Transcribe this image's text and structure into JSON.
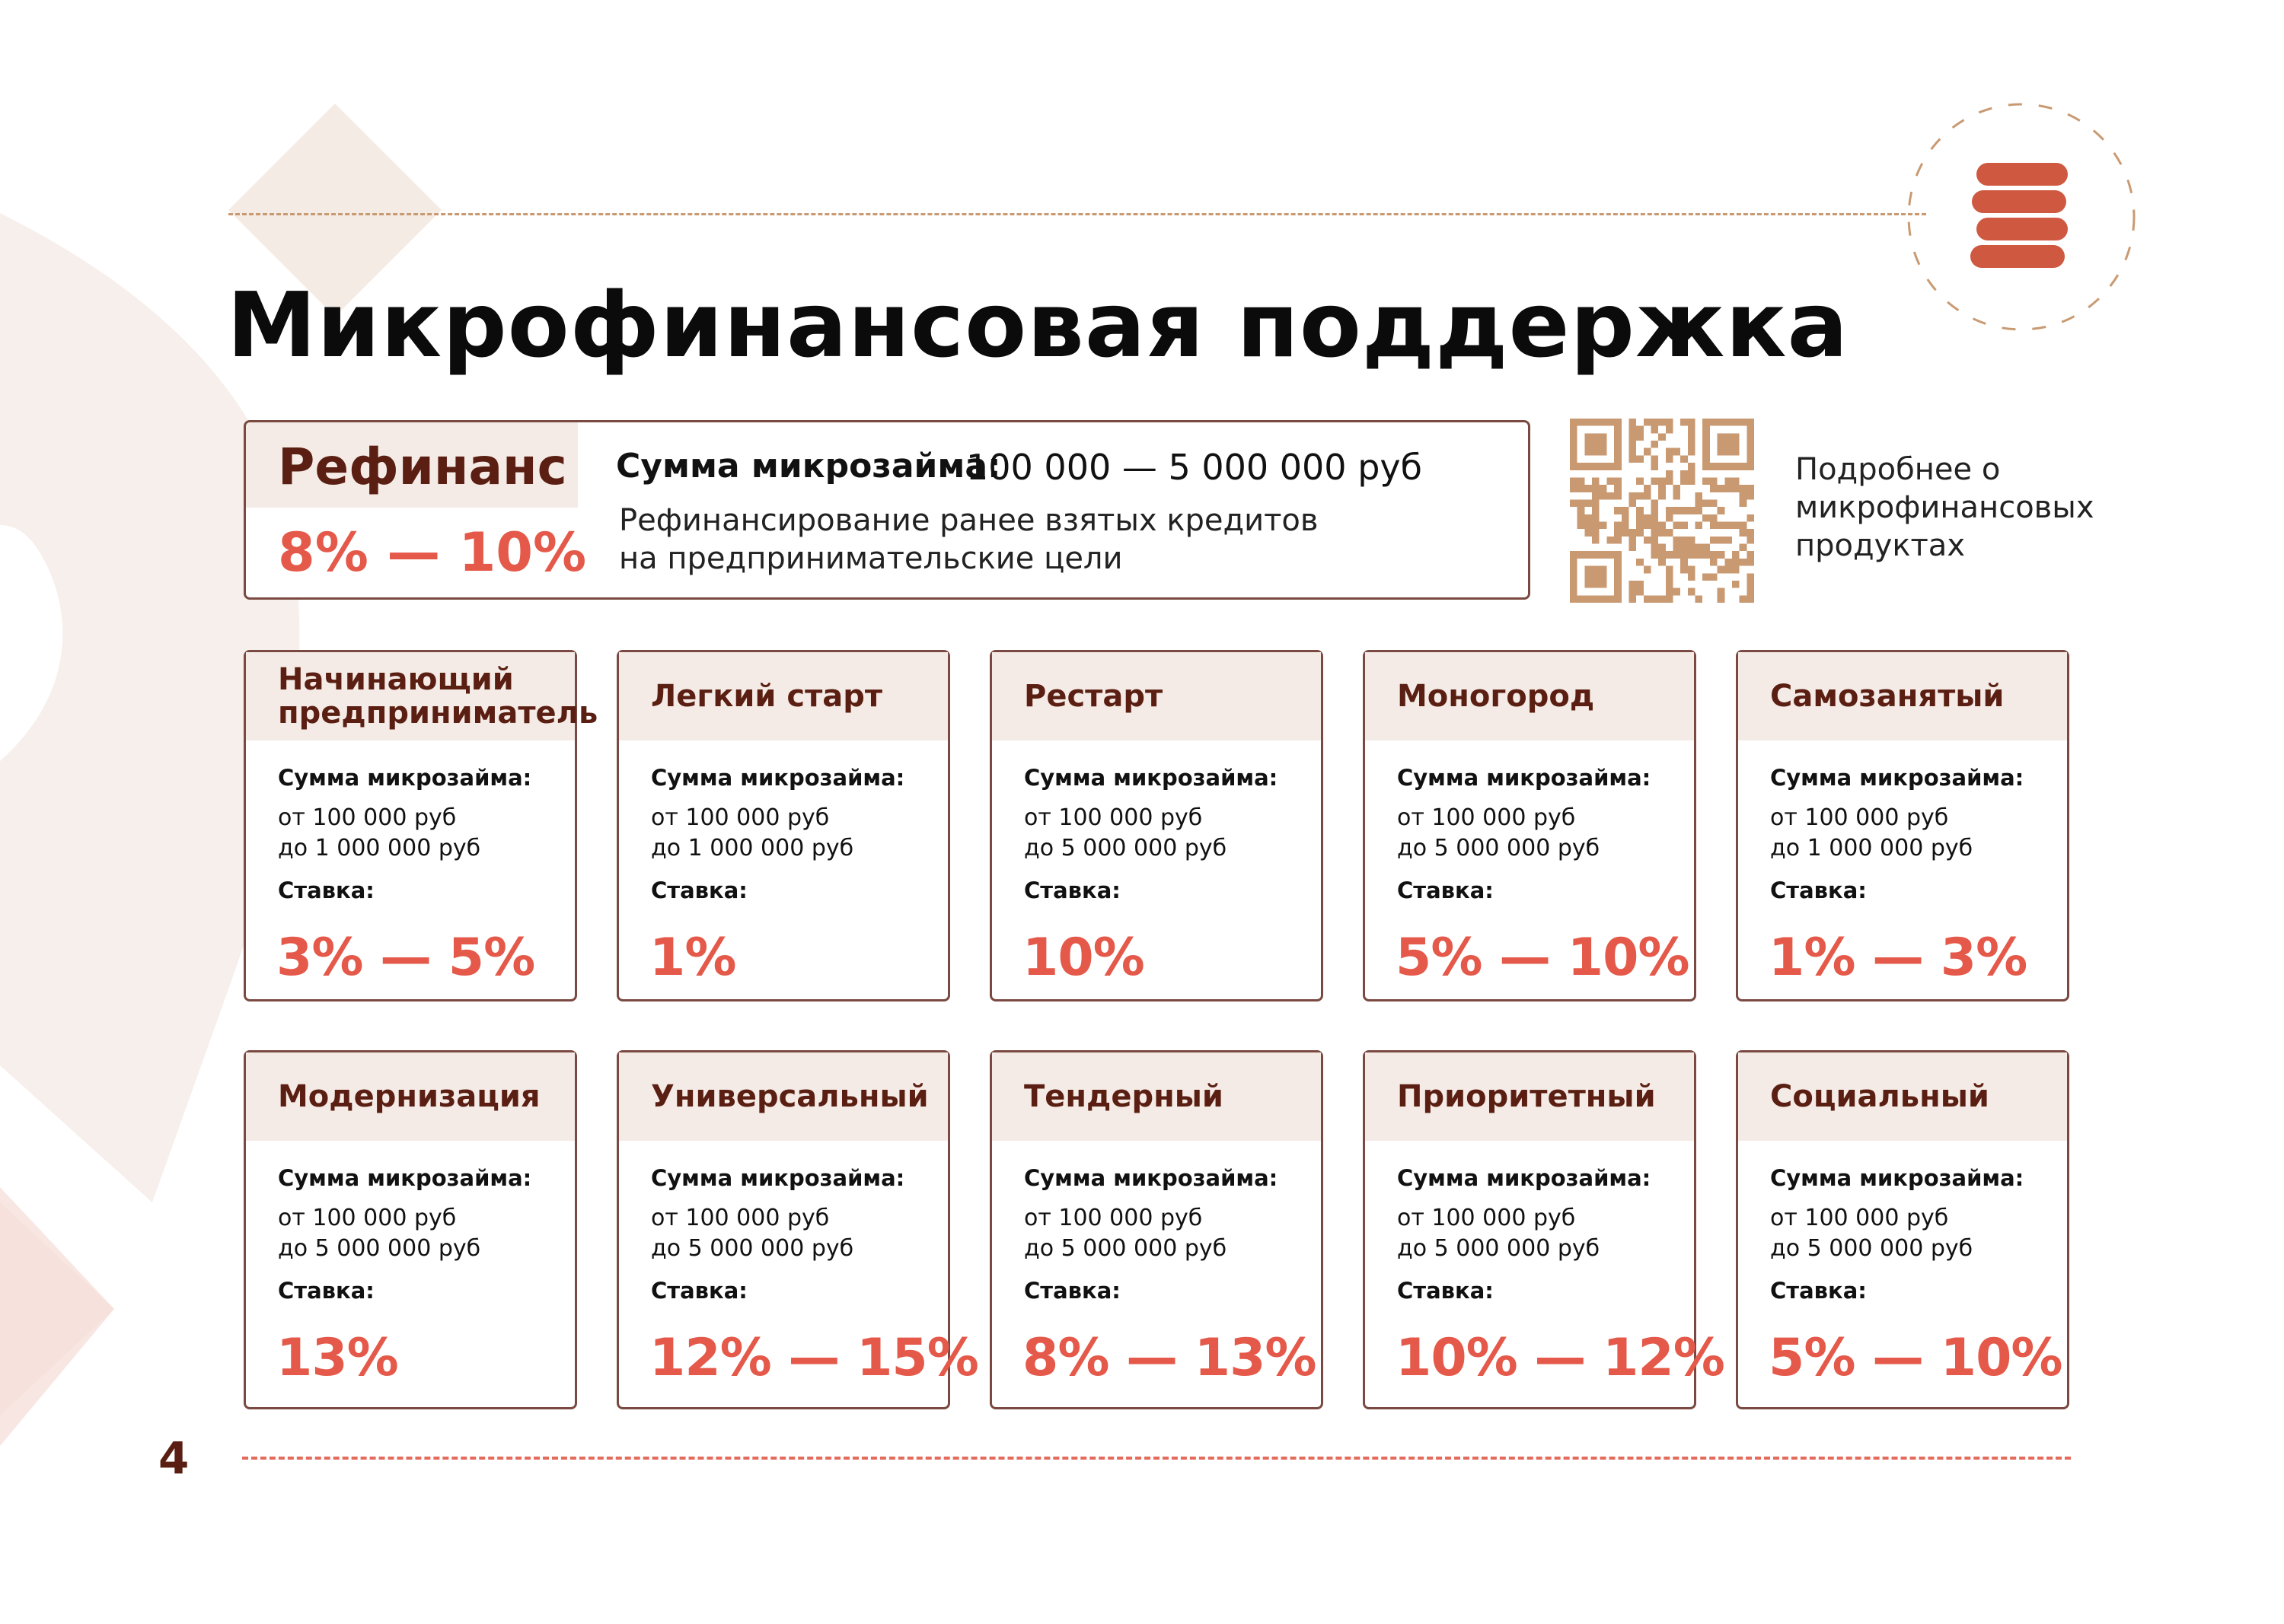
{
  "page": {
    "title": "Микрофинансовая поддержка",
    "number": "4"
  },
  "colors": {
    "accent": "#e4594a",
    "title_brown": "#5a1f12",
    "panel_bg": "#f5ebe6",
    "border": "#7a4a42",
    "coins": "#cf5841",
    "qr": "#c99a72"
  },
  "refinans": {
    "name": "Рефинанс",
    "rate": "8% — 10%",
    "amount_label": "Сумма микрозайма:",
    "amount_value": "100 000 — 5 000 000 руб",
    "description_line1": "Рефинансирование ранее взятых кредитов",
    "description_line2": "на предпринимательские цели"
  },
  "qr": {
    "icon": "qr-code-icon",
    "caption_line1": "Подробнее о",
    "caption_line2": "микрофинансовых",
    "caption_line3": "продуктах"
  },
  "labels": {
    "amount": "Сумма микрозайма:",
    "rate": "Ставка:"
  },
  "cards": [
    {
      "title_line1": "Начинающий",
      "title_line2": "предприниматель",
      "from": "от 100 000 руб",
      "to": "до 1 000 000 руб",
      "rate": "3%  —  5%"
    },
    {
      "title_line1": "Легкий старт",
      "title_line2": "",
      "from": "от 100 000 руб",
      "to": "до 1 000 000 руб",
      "rate": "1%"
    },
    {
      "title_line1": "Рестарт",
      "title_line2": "",
      "from": "от 100 000 руб",
      "to": "до 5 000 000 руб",
      "rate": "10%"
    },
    {
      "title_line1": "Моногород",
      "title_line2": "",
      "from": "от 100 000 руб",
      "to": "до 5 000 000 руб",
      "rate": "5% — 10%"
    },
    {
      "title_line1": "Самозанятый",
      "title_line2": "",
      "from": "от 100 000 руб",
      "to": "до 1 000 000 руб",
      "rate": "1%  —  3%"
    },
    {
      "title_line1": "Модернизация",
      "title_line2": "",
      "from": "от 100 000 руб",
      "to": "до 5 000 000 руб",
      "rate": "13%"
    },
    {
      "title_line1": "Универсальный",
      "title_line2": "",
      "from": "от 100 000 руб",
      "to": "до 5 000 000 руб",
      "rate": "12% — 15%"
    },
    {
      "title_line1": "Тендерный",
      "title_line2": "",
      "from": "от 100 000 руб",
      "to": "до 5 000 000 руб",
      "rate": "8%  —  13%"
    },
    {
      "title_line1": "Приоритетный",
      "title_line2": "",
      "from": "от 100 000 руб",
      "to": "до 5 000 000 руб",
      "rate": "10% — 12%"
    },
    {
      "title_line1": "Социальный",
      "title_line2": "",
      "from": "от 100 000 руб",
      "to": "до 5 000 000 руб",
      "rate": "5% — 10%"
    }
  ]
}
